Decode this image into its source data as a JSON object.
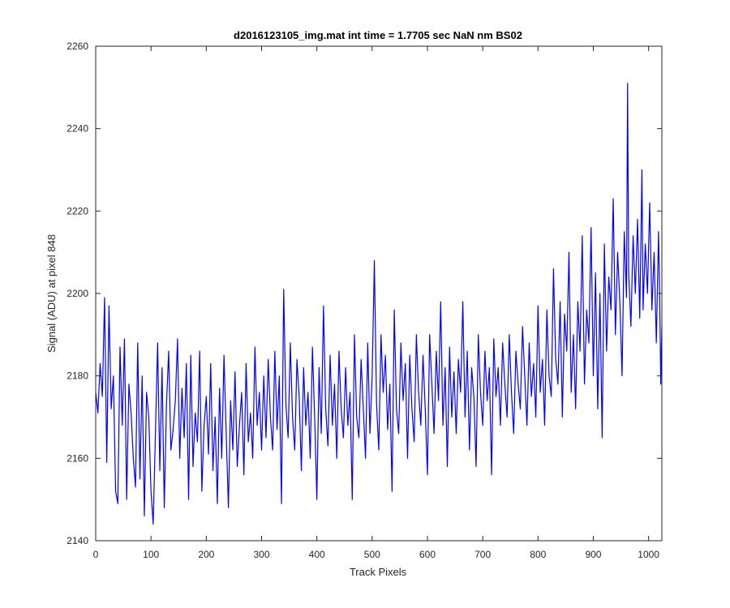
{
  "chart_data": {
    "type": "line",
    "title": "d2016123105_img.mat int time = 1.7705 sec  NaN nm BS02",
    "xlabel": "Track Pixels",
    "ylabel": "Signal (ADU) at pixel 848",
    "xlim": [
      0,
      1024
    ],
    "ylim": [
      2140,
      2260
    ],
    "xticks": [
      0,
      100,
      200,
      300,
      400,
      500,
      600,
      700,
      800,
      900,
      1000
    ],
    "yticks": [
      2140,
      2160,
      2180,
      2200,
      2220,
      2240,
      2260
    ],
    "grid": false,
    "series": [
      {
        "color": "#0000ff",
        "points": [
          [
            0,
            2176
          ],
          [
            4,
            2171
          ],
          [
            8,
            2183
          ],
          [
            12,
            2175
          ],
          [
            16,
            2199
          ],
          [
            20,
            2159
          ],
          [
            24,
            2197
          ],
          [
            28,
            2172
          ],
          [
            32,
            2180
          ],
          [
            36,
            2152
          ],
          [
            40,
            2149
          ],
          [
            44,
            2187
          ],
          [
            48,
            2168
          ],
          [
            52,
            2189
          ],
          [
            56,
            2150
          ],
          [
            60,
            2178
          ],
          [
            64,
            2171
          ],
          [
            68,
            2160
          ],
          [
            72,
            2153
          ],
          [
            76,
            2188
          ],
          [
            80,
            2155
          ],
          [
            84,
            2180
          ],
          [
            88,
            2146
          ],
          [
            92,
            2176
          ],
          [
            96,
            2170
          ],
          [
            100,
            2152
          ],
          [
            104,
            2144
          ],
          [
            108,
            2166
          ],
          [
            112,
            2188
          ],
          [
            116,
            2157
          ],
          [
            120,
            2182
          ],
          [
            124,
            2148
          ],
          [
            128,
            2173
          ],
          [
            132,
            2186
          ],
          [
            136,
            2162
          ],
          [
            140,
            2167
          ],
          [
            144,
            2174
          ],
          [
            148,
            2189
          ],
          [
            152,
            2160
          ],
          [
            156,
            2177
          ],
          [
            160,
            2165
          ],
          [
            164,
            2183
          ],
          [
            168,
            2150
          ],
          [
            172,
            2185
          ],
          [
            176,
            2158
          ],
          [
            180,
            2171
          ],
          [
            184,
            2164
          ],
          [
            188,
            2186
          ],
          [
            192,
            2152
          ],
          [
            196,
            2168
          ],
          [
            200,
            2175
          ],
          [
            204,
            2161
          ],
          [
            208,
            2183
          ],
          [
            212,
            2157
          ],
          [
            216,
            2170
          ],
          [
            220,
            2149
          ],
          [
            224,
            2177
          ],
          [
            228,
            2160
          ],
          [
            232,
            2185
          ],
          [
            236,
            2166
          ],
          [
            240,
            2148
          ],
          [
            244,
            2174
          ],
          [
            248,
            2162
          ],
          [
            252,
            2181
          ],
          [
            256,
            2158
          ],
          [
            260,
            2168
          ],
          [
            264,
            2176
          ],
          [
            268,
            2156
          ],
          [
            272,
            2183
          ],
          [
            276,
            2164
          ],
          [
            280,
            2171
          ],
          [
            284,
            2160
          ],
          [
            288,
            2187
          ],
          [
            292,
            2168
          ],
          [
            296,
            2176
          ],
          [
            300,
            2162
          ],
          [
            304,
            2180
          ],
          [
            308,
            2165
          ],
          [
            312,
            2184
          ],
          [
            316,
            2170
          ],
          [
            320,
            2162
          ],
          [
            324,
            2186
          ],
          [
            328,
            2167
          ],
          [
            332,
            2180
          ],
          [
            336,
            2149
          ],
          [
            340,
            2201
          ],
          [
            344,
            2173
          ],
          [
            348,
            2165
          ],
          [
            352,
            2188
          ],
          [
            356,
            2170
          ],
          [
            360,
            2162
          ],
          [
            364,
            2184
          ],
          [
            368,
            2175
          ],
          [
            372,
            2157
          ],
          [
            376,
            2182
          ],
          [
            380,
            2168
          ],
          [
            384,
            2176
          ],
          [
            388,
            2160
          ],
          [
            392,
            2187
          ],
          [
            396,
            2170
          ],
          [
            400,
            2150
          ],
          [
            404,
            2182
          ],
          [
            408,
            2166
          ],
          [
            412,
            2197
          ],
          [
            416,
            2172
          ],
          [
            420,
            2163
          ],
          [
            424,
            2185
          ],
          [
            428,
            2168
          ],
          [
            432,
            2178
          ],
          [
            436,
            2160
          ],
          [
            440,
            2186
          ],
          [
            444,
            2172
          ],
          [
            448,
            2165
          ],
          [
            452,
            2182
          ],
          [
            456,
            2168
          ],
          [
            460,
            2176
          ],
          [
            464,
            2150
          ],
          [
            468,
            2190
          ],
          [
            472,
            2170
          ],
          [
            476,
            2165
          ],
          [
            480,
            2184
          ],
          [
            484,
            2172
          ],
          [
            488,
            2160
          ],
          [
            492,
            2188
          ],
          [
            496,
            2166
          ],
          [
            500,
            2180
          ],
          [
            504,
            2208
          ],
          [
            508,
            2173
          ],
          [
            512,
            2162
          ],
          [
            516,
            2190
          ],
          [
            520,
            2176
          ],
          [
            524,
            2185
          ],
          [
            528,
            2167
          ],
          [
            532,
            2178
          ],
          [
            536,
            2152
          ],
          [
            540,
            2196
          ],
          [
            544,
            2172
          ],
          [
            548,
            2166
          ],
          [
            552,
            2188
          ],
          [
            556,
            2174
          ],
          [
            560,
            2183
          ],
          [
            564,
            2160
          ],
          [
            568,
            2185
          ],
          [
            572,
            2172
          ],
          [
            576,
            2164
          ],
          [
            580,
            2190
          ],
          [
            584,
            2176
          ],
          [
            588,
            2168
          ],
          [
            592,
            2185
          ],
          [
            596,
            2172
          ],
          [
            600,
            2156
          ],
          [
            604,
            2190
          ],
          [
            608,
            2178
          ],
          [
            612,
            2166
          ],
          [
            616,
            2186
          ],
          [
            620,
            2174
          ],
          [
            624,
            2198
          ],
          [
            628,
            2168
          ],
          [
            632,
            2182
          ],
          [
            636,
            2158
          ],
          [
            640,
            2187
          ],
          [
            644,
            2170
          ],
          [
            648,
            2181
          ],
          [
            652,
            2166
          ],
          [
            656,
            2184
          ],
          [
            660,
            2176
          ],
          [
            664,
            2198
          ],
          [
            668,
            2170
          ],
          [
            672,
            2186
          ],
          [
            676,
            2162
          ],
          [
            680,
            2182
          ],
          [
            684,
            2175
          ],
          [
            688,
            2158
          ],
          [
            692,
            2190
          ],
          [
            696,
            2176
          ],
          [
            700,
            2168
          ],
          [
            704,
            2186
          ],
          [
            708,
            2174
          ],
          [
            712,
            2182
          ],
          [
            716,
            2156
          ],
          [
            720,
            2189
          ],
          [
            724,
            2175
          ],
          [
            728,
            2182
          ],
          [
            732,
            2168
          ],
          [
            736,
            2188
          ],
          [
            740,
            2178
          ],
          [
            744,
            2170
          ],
          [
            748,
            2190
          ],
          [
            752,
            2176
          ],
          [
            756,
            2166
          ],
          [
            760,
            2186
          ],
          [
            764,
            2178
          ],
          [
            768,
            2172
          ],
          [
            772,
            2192
          ],
          [
            776,
            2180
          ],
          [
            780,
            2168
          ],
          [
            784,
            2188
          ],
          [
            788,
            2175
          ],
          [
            792,
            2183
          ],
          [
            796,
            2170
          ],
          [
            800,
            2197
          ],
          [
            804,
            2176
          ],
          [
            808,
            2184
          ],
          [
            812,
            2168
          ],
          [
            816,
            2196
          ],
          [
            820,
            2180
          ],
          [
            824,
            2175
          ],
          [
            828,
            2206
          ],
          [
            832,
            2184
          ],
          [
            836,
            2178
          ],
          [
            840,
            2198
          ],
          [
            844,
            2170
          ],
          [
            848,
            2195
          ],
          [
            852,
            2186
          ],
          [
            856,
            2210
          ],
          [
            860,
            2176
          ],
          [
            864,
            2190
          ],
          [
            868,
            2172
          ],
          [
            872,
            2198
          ],
          [
            876,
            2186
          ],
          [
            880,
            2214
          ],
          [
            884,
            2178
          ],
          [
            888,
            2196
          ],
          [
            892,
            2188
          ],
          [
            896,
            2216
          ],
          [
            900,
            2180
          ],
          [
            904,
            2205
          ],
          [
            908,
            2172
          ],
          [
            912,
            2200
          ],
          [
            916,
            2165
          ],
          [
            920,
            2212
          ],
          [
            924,
            2186
          ],
          [
            928,
            2204
          ],
          [
            932,
            2196
          ],
          [
            936,
            2223
          ],
          [
            940,
            2190
          ],
          [
            944,
            2210
          ],
          [
            948,
            2198
          ],
          [
            952,
            2180
          ],
          [
            956,
            2215
          ],
          [
            960,
            2199
          ],
          [
            962,
            2251
          ],
          [
            964,
            2205
          ],
          [
            968,
            2192
          ],
          [
            972,
            2214
          ],
          [
            976,
            2200
          ],
          [
            980,
            2218
          ],
          [
            984,
            2194
          ],
          [
            988,
            2230
          ],
          [
            990,
            2196
          ],
          [
            994,
            2212
          ],
          [
            998,
            2200
          ],
          [
            1002,
            2222
          ],
          [
            1006,
            2196
          ],
          [
            1010,
            2210
          ],
          [
            1014,
            2188
          ],
          [
            1018,
            2215
          ],
          [
            1020,
            2200
          ],
          [
            1022,
            2178
          ],
          [
            1024,
            2192
          ]
        ]
      }
    ]
  }
}
